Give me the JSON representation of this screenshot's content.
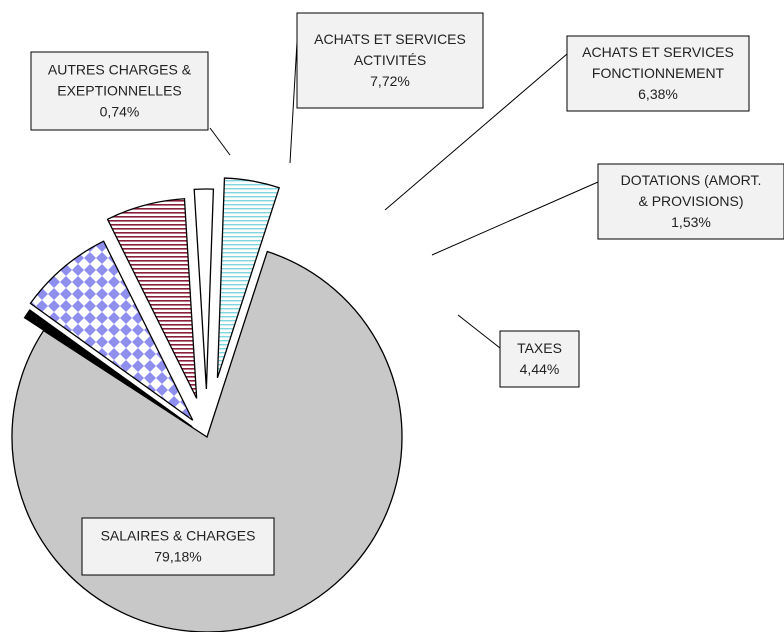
{
  "chart_data": {
    "type": "pie",
    "exploded": true,
    "slices": [
      {
        "label_lines": [
          "SALAIRES & CHARGES"
        ],
        "percent": "79,18%",
        "value": 79.18,
        "color": "#c8c8c8",
        "pattern": "solid-gray"
      },
      {
        "label_lines": [
          "AUTRES CHARGES &",
          "EXEPTIONNELLES"
        ],
        "percent": "0,74%",
        "value": 0.74,
        "color": "#000000",
        "pattern": "solid-black"
      },
      {
        "label_lines": [
          "ACHATS ET SERVICES",
          "ACTIVITÉS"
        ],
        "percent": "7,72%",
        "value": 7.72,
        "color": "#8f8ff0",
        "pattern": "diamond-checker"
      },
      {
        "label_lines": [
          "ACHATS ET SERVICES",
          "FONCTIONNEMENT"
        ],
        "percent": "6,38%",
        "value": 6.38,
        "color": "#8a1f3c",
        "pattern": "horizontal-red-lines"
      },
      {
        "label_lines": [
          "DOTATIONS (AMORT.",
          "& PROVISIONS)"
        ],
        "percent": "1,53%",
        "value": 1.53,
        "color": "#ffffff",
        "pattern": "plain-white"
      },
      {
        "label_lines": [
          "TAXES"
        ],
        "percent": "4,44%",
        "value": 4.44,
        "color": "#7fd6de",
        "pattern": "horizontal-cyan-lines"
      }
    ]
  }
}
